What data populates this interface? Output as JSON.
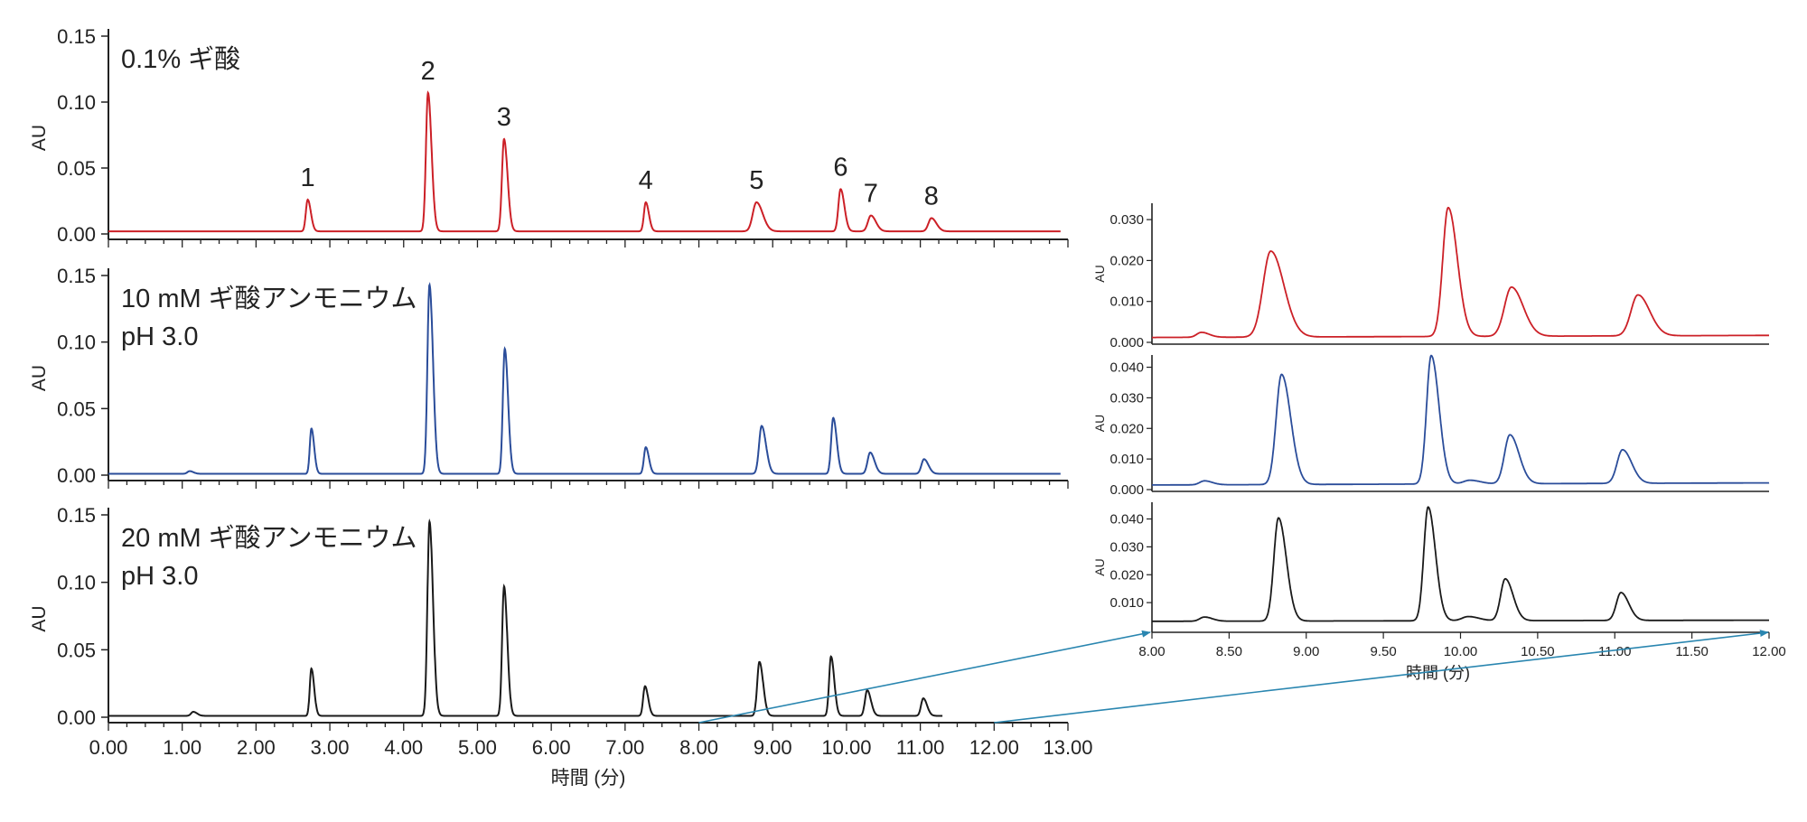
{
  "colors": {
    "formic": "#cc2027",
    "amf10": "#2b4d9a",
    "amf20": "#1a1a1a",
    "zoom_arrow": "#2a86b0",
    "axis": "#222222"
  },
  "chart_data": [
    {
      "type": "line",
      "x_label": "時間 (分)",
      "xlim": [
        0,
        13
      ],
      "x_ticks": [
        "0.00",
        "1.00",
        "2.00",
        "3.00",
        "4.00",
        "5.00",
        "6.00",
        "7.00",
        "8.00",
        "9.00",
        "10.00",
        "11.00",
        "12.00",
        "13.00"
      ],
      "y_label": "AU",
      "ylim": [
        0,
        0.15
      ],
      "y_ticks": [
        "0.00",
        "0.05",
        "0.10",
        "0.15"
      ],
      "panels": [
        {
          "label_lines": [
            "0.1% ギ酸"
          ],
          "color_key": "formic",
          "x_end": 12.9,
          "baseline": 0.002,
          "peaks": [
            {
              "t": 2.7,
              "h": 0.024,
              "w": 0.025,
              "label": "1"
            },
            {
              "t": 4.33,
              "h": 0.105,
              "w": 0.028,
              "label": "2"
            },
            {
              "t": 5.36,
              "h": 0.07,
              "w": 0.028,
              "label": "3"
            },
            {
              "t": 7.28,
              "h": 0.022,
              "w": 0.025,
              "label": "4"
            },
            {
              "t": 8.78,
              "h": 0.022,
              "w": 0.05,
              "label": "5"
            },
            {
              "t": 9.92,
              "h": 0.032,
              "w": 0.03,
              "label": "6"
            },
            {
              "t": 10.33,
              "h": 0.012,
              "w": 0.04,
              "label": "7"
            },
            {
              "t": 11.15,
              "h": 0.01,
              "w": 0.04,
              "label": "8"
            }
          ]
        },
        {
          "label_lines": [
            "10 mM ギ酸アンモニウム",
            "pH 3.0"
          ],
          "color_key": "amf10",
          "x_end": 12.9,
          "baseline": 0.001,
          "peaks": [
            {
              "t": 1.1,
              "h": 0.002,
              "w": 0.03
            },
            {
              "t": 2.75,
              "h": 0.034,
              "w": 0.022
            },
            {
              "t": 4.35,
              "h": 0.142,
              "w": 0.028
            },
            {
              "t": 5.37,
              "h": 0.094,
              "w": 0.026
            },
            {
              "t": 7.28,
              "h": 0.02,
              "w": 0.025
            },
            {
              "t": 8.85,
              "h": 0.036,
              "w": 0.035
            },
            {
              "t": 9.82,
              "h": 0.042,
              "w": 0.028
            },
            {
              "t": 10.32,
              "h": 0.016,
              "w": 0.035
            },
            {
              "t": 11.05,
              "h": 0.011,
              "w": 0.035
            }
          ]
        },
        {
          "label_lines": [
            "20 mM ギ酸アンモニウム",
            "pH 3.0"
          ],
          "color_key": "amf20",
          "x_end": 11.3,
          "baseline": 0.001,
          "peaks": [
            {
              "t": 1.15,
              "h": 0.003,
              "w": 0.03
            },
            {
              "t": 2.75,
              "h": 0.035,
              "w": 0.022
            },
            {
              "t": 4.35,
              "h": 0.144,
              "w": 0.028
            },
            {
              "t": 5.36,
              "h": 0.096,
              "w": 0.026
            },
            {
              "t": 7.27,
              "h": 0.022,
              "w": 0.025
            },
            {
              "t": 8.82,
              "h": 0.04,
              "w": 0.03
            },
            {
              "t": 9.79,
              "h": 0.044,
              "w": 0.026
            },
            {
              "t": 10.28,
              "h": 0.019,
              "w": 0.03
            },
            {
              "t": 11.04,
              "h": 0.013,
              "w": 0.03
            }
          ]
        }
      ]
    },
    {
      "type": "line",
      "x_label": "時間 (分)",
      "xlim": [
        8.0,
        12.0
      ],
      "x_ticks": [
        "8.00",
        "8.50",
        "9.00",
        "9.50",
        "10.00",
        "10.50",
        "11.00",
        "11.50",
        "12.00"
      ],
      "y_label": "AU",
      "panels": [
        {
          "color_key": "formic",
          "ylim": [
            0,
            0.034
          ],
          "y_ticks": [
            "0.000",
            "0.010",
            "0.020",
            "0.030"
          ],
          "baseline": 0.0012,
          "baseline_end": 0.0017,
          "peaks": [
            {
              "t": 8.32,
              "h": 0.0012,
              "w": 0.03
            },
            {
              "t": 8.77,
              "h": 0.021,
              "w": 0.05
            },
            {
              "t": 9.92,
              "h": 0.0315,
              "w": 0.035
            },
            {
              "t": 10.33,
              "h": 0.012,
              "w": 0.045
            },
            {
              "t": 11.15,
              "h": 0.01,
              "w": 0.045
            }
          ]
        },
        {
          "color_key": "amf10",
          "ylim": [
            0,
            0.044
          ],
          "y_ticks": [
            "0.000",
            "0.010",
            "0.020",
            "0.030",
            "0.040"
          ],
          "baseline": 0.0015,
          "baseline_end": 0.0022,
          "peaks": [
            {
              "t": 8.34,
              "h": 0.0013,
              "w": 0.03
            },
            {
              "t": 8.84,
              "h": 0.036,
              "w": 0.035
            },
            {
              "t": 9.81,
              "h": 0.042,
              "w": 0.03
            },
            {
              "t": 10.06,
              "h": 0.0012,
              "w": 0.04
            },
            {
              "t": 10.32,
              "h": 0.016,
              "w": 0.035
            },
            {
              "t": 11.05,
              "h": 0.011,
              "w": 0.035
            }
          ]
        },
        {
          "color_key": "amf20",
          "ylim": [
            0,
            0.046
          ],
          "y_ticks": [
            "0.010",
            "0.020",
            "0.030",
            "0.040"
          ],
          "baseline": 0.0033,
          "baseline_end": 0.0037,
          "peaks": [
            {
              "t": 8.34,
              "h": 0.0015,
              "w": 0.03
            },
            {
              "t": 8.82,
              "h": 0.037,
              "w": 0.03
            },
            {
              "t": 9.79,
              "h": 0.0408,
              "w": 0.028
            },
            {
              "t": 10.05,
              "h": 0.0015,
              "w": 0.04
            },
            {
              "t": 10.29,
              "h": 0.015,
              "w": 0.03
            },
            {
              "t": 11.04,
              "h": 0.01,
              "w": 0.03
            }
          ]
        }
      ]
    }
  ]
}
